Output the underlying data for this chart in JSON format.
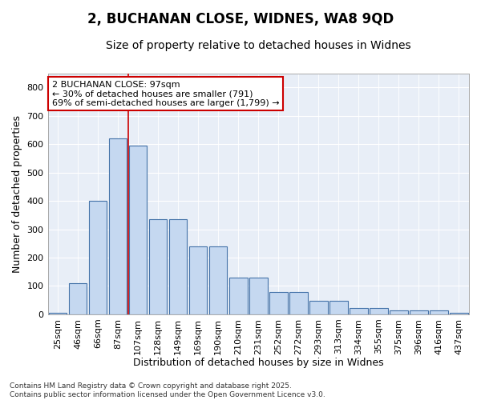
{
  "title1": "2, BUCHANAN CLOSE, WIDNES, WA8 9QD",
  "title2": "Size of property relative to detached houses in Widnes",
  "xlabel": "Distribution of detached houses by size in Widnes",
  "ylabel": "Number of detached properties",
  "categories": [
    "25sqm",
    "46sqm",
    "66sqm",
    "87sqm",
    "107sqm",
    "128sqm",
    "149sqm",
    "169sqm",
    "190sqm",
    "210sqm",
    "231sqm",
    "252sqm",
    "272sqm",
    "293sqm",
    "313sqm",
    "334sqm",
    "355sqm",
    "375sqm",
    "396sqm",
    "416sqm",
    "437sqm"
  ],
  "values": [
    5,
    110,
    400,
    620,
    595,
    335,
    335,
    240,
    240,
    130,
    130,
    78,
    78,
    48,
    48,
    22,
    22,
    14,
    14,
    14,
    5
  ],
  "bar_color": "#c5d8f0",
  "bar_edge_color": "#4472a8",
  "background_color": "#e8eef7",
  "grid_color": "#ffffff",
  "vline_color": "#cc0000",
  "annotation_text": "2 BUCHANAN CLOSE: 97sqm\n← 30% of detached houses are smaller (791)\n69% of semi-detached houses are larger (1,799) →",
  "annotation_box_color": "#ffffff",
  "annotation_box_edge": "#cc0000",
  "ylim": [
    0,
    850
  ],
  "yticks": [
    0,
    100,
    200,
    300,
    400,
    500,
    600,
    700,
    800
  ],
  "footer": "Contains HM Land Registry data © Crown copyright and database right 2025.\nContains public sector information licensed under the Open Government Licence v3.0.",
  "title1_fontsize": 12,
  "title2_fontsize": 10,
  "tick_fontsize": 8,
  "xlabel_fontsize": 9,
  "ylabel_fontsize": 9,
  "vline_x": 3.5
}
